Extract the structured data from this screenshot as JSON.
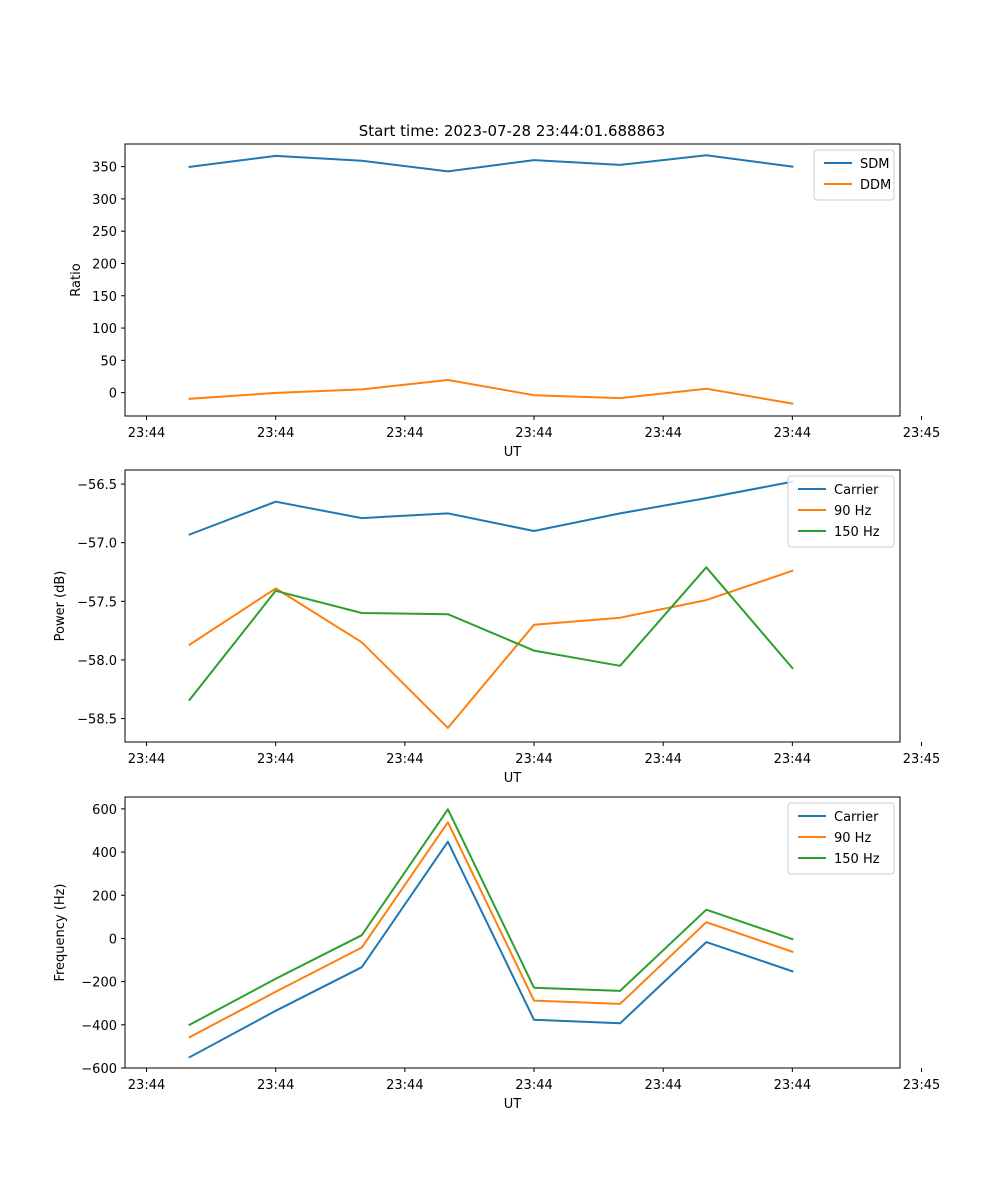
{
  "figure": {
    "title": "Start time: 2023-07-28 23:44:01.688863"
  },
  "colors": {
    "blue": "#1f77b4",
    "orange": "#ff7f0e",
    "green": "#2ca02c"
  },
  "chart_data": [
    {
      "type": "line",
      "title": "Start time: 2023-07-28 23:44:01.688863",
      "xlabel": "UT",
      "ylabel": "Ratio",
      "x": [
        1,
        2,
        3,
        4,
        5,
        6,
        7,
        8
      ],
      "xlim": [
        0.25,
        9.25
      ],
      "x_ticks": [
        0.5,
        2,
        3.5,
        5,
        6.5,
        8,
        9.5
      ],
      "x_tick_labels": [
        "23:44",
        "23:44",
        "23:44",
        "23:44",
        "23:44",
        "23:44",
        "23:45"
      ],
      "ylim": [
        -36.2,
        385
      ],
      "y_ticks": [
        0,
        50,
        100,
        150,
        200,
        250,
        300,
        350
      ],
      "y_tick_labels": [
        "0",
        "50",
        "100",
        "150",
        "200",
        "250",
        "300",
        "350"
      ],
      "legend_position": "top-right",
      "series": [
        {
          "name": "SDM",
          "color": "blue",
          "values": [
            349.5,
            366.5,
            359.2,
            342.5,
            360.0,
            352.7,
            367.5,
            350.0
          ]
        },
        {
          "name": "DDM",
          "color": "orange",
          "values": [
            -9.5,
            -0.5,
            5.0,
            19.5,
            -4.0,
            -8.5,
            6.0,
            -17.0
          ]
        }
      ]
    },
    {
      "type": "line",
      "xlabel": "UT",
      "ylabel": "Power (dB)",
      "x": [
        1,
        2,
        3,
        4,
        5,
        6,
        7,
        8
      ],
      "xlim": [
        0.25,
        9.25
      ],
      "x_ticks": [
        0.5,
        2,
        3.5,
        5,
        6.5,
        8,
        9.5
      ],
      "x_tick_labels": [
        "23:44",
        "23:44",
        "23:44",
        "23:44",
        "23:44",
        "23:44",
        "23:45"
      ],
      "ylim": [
        -58.7,
        -56.38
      ],
      "y_ticks": [
        -58.5,
        -58.0,
        -57.5,
        -57.0,
        -56.5
      ],
      "y_tick_labels": [
        "−58.5",
        "−58.0",
        "−57.5",
        "−57.0",
        "−56.5"
      ],
      "legend_position": "top-right",
      "series": [
        {
          "name": "Carrier",
          "color": "blue",
          "values": [
            -56.93,
            -56.65,
            -56.79,
            -56.75,
            -56.9,
            -56.75,
            -56.62,
            -56.48
          ]
        },
        {
          "name": "90 Hz",
          "color": "orange",
          "values": [
            -57.87,
            -57.39,
            -57.85,
            -58.58,
            -57.7,
            -57.64,
            -57.49,
            -57.24
          ]
        },
        {
          "name": "150 Hz",
          "color": "green",
          "values": [
            -58.34,
            -57.41,
            -57.6,
            -57.61,
            -57.92,
            -58.05,
            -57.21,
            -58.07
          ]
        }
      ]
    },
    {
      "type": "line",
      "xlabel": "UT",
      "ylabel": "Frequency (Hz)",
      "x": [
        1,
        2,
        3,
        4,
        5,
        6,
        7,
        8
      ],
      "xlim": [
        0.25,
        9.25
      ],
      "x_ticks": [
        0.5,
        2,
        3.5,
        5,
        6.5,
        8,
        9.5
      ],
      "x_tick_labels": [
        "23:44",
        "23:44",
        "23:44",
        "23:44",
        "23:44",
        "23:44",
        "23:45"
      ],
      "ylim": [
        -600,
        655
      ],
      "y_ticks": [
        -600,
        -400,
        -200,
        0,
        200,
        400,
        600
      ],
      "y_tick_labels": [
        "−600",
        "−400",
        "−200",
        "0",
        "200",
        "400",
        "600"
      ],
      "legend_position": "top-right",
      "series": [
        {
          "name": "Carrier",
          "color": "blue",
          "values": [
            -550,
            -335,
            -133,
            448,
            -377,
            -393,
            -17,
            -152
          ]
        },
        {
          "name": "90 Hz",
          "color": "orange",
          "values": [
            -457,
            -247,
            -42,
            538,
            -288,
            -303,
            75,
            -62
          ]
        },
        {
          "name": "150 Hz",
          "color": "green",
          "values": [
            -400,
            -187,
            15,
            598,
            -228,
            -243,
            133,
            -3
          ]
        }
      ]
    }
  ]
}
